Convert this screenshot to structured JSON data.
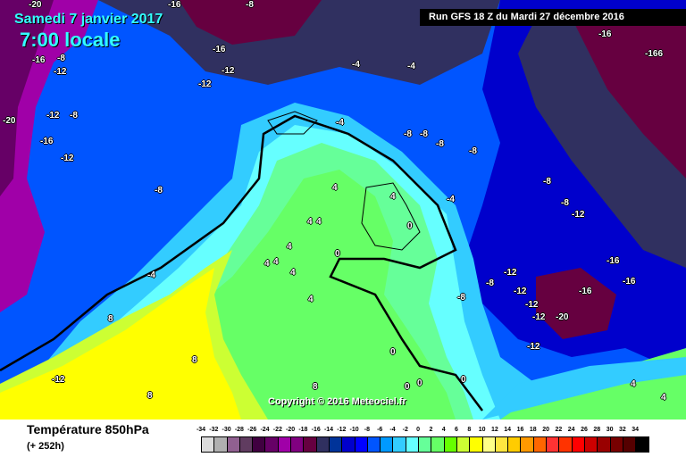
{
  "header": {
    "date": "Samedi 7 janvier 2017",
    "time": "7:00 locale",
    "run": "Run GFS 18 Z du Mardi 27 décembre 2016"
  },
  "copyright": "Copyright © 2016 Meteociel.fr",
  "footer": {
    "title": "Température 850hPa",
    "subtitle": "(+ 252h)"
  },
  "legend": {
    "labels": [
      "-34",
      "-32",
      "-30",
      "-28",
      "-26",
      "-24",
      "-22",
      "-20",
      "-18",
      "-16",
      "-14",
      "-12",
      "-10",
      "-8",
      "-6",
      "-4",
      "-2",
      "0",
      "2",
      "4",
      "6",
      "8",
      "10",
      "12",
      "14",
      "16",
      "18",
      "20",
      "22",
      "24",
      "26",
      "28",
      "30",
      "32",
      "34"
    ],
    "colors": [
      "#dcdcdc",
      "#b0b0b0",
      "#906090",
      "#603c60",
      "#400040",
      "#660066",
      "#a000a8",
      "#800080",
      "#660040",
      "#303060",
      "#003399",
      "#0000cc",
      "#0000ff",
      "#0055ff",
      "#0099ff",
      "#33ccff",
      "#66ffff",
      "#66ff99",
      "#66ff66",
      "#66ff00",
      "#ccff33",
      "#ffff00",
      "#ffff88",
      "#ffe640",
      "#ffcc00",
      "#ff9900",
      "#ff6600",
      "#ff3333",
      "#ff3300",
      "#ff0000",
      "#cc0000",
      "#990000",
      "#770000",
      "#550000",
      "#000000"
    ]
  },
  "contour_labels": [
    "-20",
    "-16",
    "-8",
    "-16",
    "-8",
    "-12",
    "-16",
    "-12",
    "-12",
    "-20",
    "-12",
    "-8",
    "-16",
    "-12",
    "-8",
    "-4",
    "-4",
    "-4",
    "-8",
    "-8",
    "-8",
    "-8",
    "-16",
    "-166",
    "-8",
    "-8",
    "-12",
    "-4",
    "4",
    "4",
    "4",
    "4",
    "4",
    "0",
    "4",
    "4",
    "4",
    "4",
    "-4",
    "0",
    "-8",
    "-12",
    "-8",
    "-12",
    "-16",
    "-12",
    "-16",
    "-12",
    "-20",
    "-16",
    "-12",
    "0",
    "0",
    "0",
    "0",
    "8",
    "8",
    "-12",
    "8",
    "4",
    "8",
    "4"
  ]
}
